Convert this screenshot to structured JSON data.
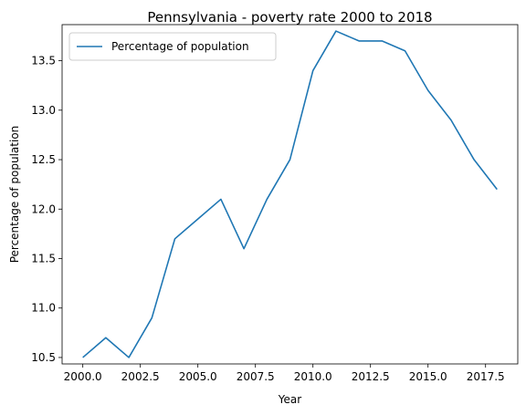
{
  "chart_data": {
    "type": "line",
    "title": "Pennsylvania - poverty rate 2000 to 2018",
    "xlabel": "Year",
    "ylabel": "Percentage of population",
    "x": [
      2000,
      2001,
      2002,
      2003,
      2004,
      2005,
      2006,
      2007,
      2008,
      2009,
      2010,
      2011,
      2012,
      2013,
      2014,
      2015,
      2016,
      2017,
      2018
    ],
    "series": [
      {
        "name": "Percentage of population",
        "color": "#1f77b4",
        "values": [
          10.5,
          10.7,
          10.5,
          10.9,
          11.7,
          11.9,
          12.1,
          11.6,
          12.1,
          12.5,
          13.4,
          13.8,
          13.7,
          13.7,
          13.6,
          13.2,
          12.9,
          12.5,
          12.2
        ]
      }
    ],
    "xlim": [
      1999.1,
      2018.9
    ],
    "ylim": [
      10.435,
      13.865
    ],
    "xticks": [
      "2000.0",
      "2002.5",
      "2005.0",
      "2007.5",
      "2010.0",
      "2012.5",
      "2015.0",
      "2017.5"
    ],
    "yticks": [
      "10.5",
      "11.0",
      "11.5",
      "12.0",
      "12.5",
      "13.0",
      "13.5"
    ],
    "grid": false,
    "legend_position": "top-left"
  }
}
